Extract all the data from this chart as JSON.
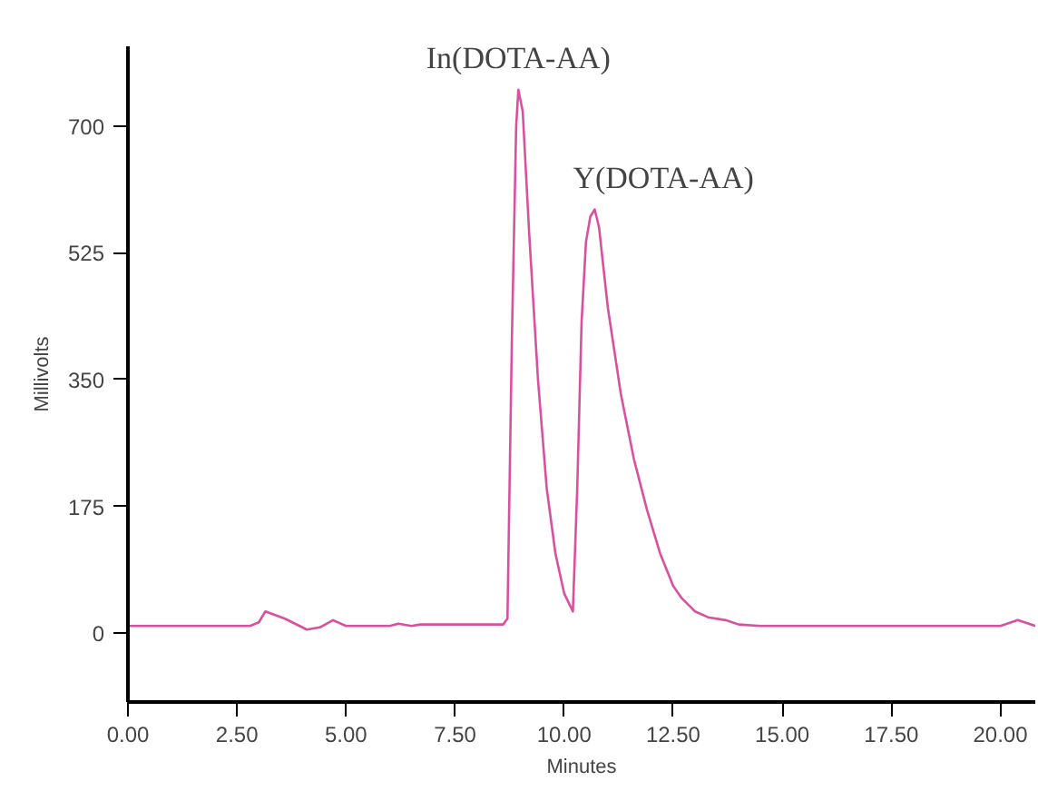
{
  "chart_data": {
    "type": "line",
    "xlabel": "Minutes",
    "ylabel": "Millivolts",
    "x": [
      0,
      2.8,
      3.0,
      3.15,
      3.6,
      4.1,
      4.4,
      4.7,
      5.0,
      6.0,
      6.2,
      6.5,
      6.7,
      8.6,
      8.7,
      8.8,
      8.9,
      8.95,
      9.05,
      9.2,
      9.4,
      9.6,
      9.8,
      10.0,
      10.2,
      10.3,
      10.4,
      10.5,
      10.6,
      10.7,
      10.8,
      11.0,
      11.3,
      11.6,
      11.9,
      12.2,
      12.5,
      12.7,
      13.0,
      13.3,
      13.7,
      14.0,
      14.5,
      15.0,
      16.0,
      17.0,
      18.0,
      19.0,
      20.0,
      20.4,
      20.8
    ],
    "series": [
      {
        "color": "#d9519e",
        "values": [
          10,
          10,
          15,
          30,
          20,
          5,
          8,
          18,
          10,
          10,
          13,
          10,
          12,
          12,
          20,
          400,
          700,
          750,
          720,
          550,
          350,
          200,
          110,
          55,
          30,
          200,
          430,
          540,
          575,
          585,
          560,
          450,
          330,
          240,
          170,
          110,
          65,
          48,
          30,
          22,
          18,
          12,
          10,
          10,
          10,
          10,
          10,
          10,
          10,
          18,
          10
        ]
      }
    ],
    "xlim": [
      0,
      20.8
    ],
    "ylim": [
      -95,
      810
    ],
    "xticks": [
      {
        "value": 0,
        "label": "0.00"
      },
      {
        "value": 2.5,
        "label": "2.50"
      },
      {
        "value": 5,
        "label": "5.00"
      },
      {
        "value": 7.5,
        "label": "7.50"
      },
      {
        "value": 10,
        "label": "10.00"
      },
      {
        "value": 12.5,
        "label": "12.50"
      },
      {
        "value": 15,
        "label": "15.00"
      },
      {
        "value": 17.5,
        "label": "17.50"
      },
      {
        "value": 20,
        "label": "20.00"
      }
    ],
    "yticks": [
      0,
      175,
      350,
      525,
      700
    ],
    "annotations": [
      {
        "text": "In(DOTA-AA)",
        "x": 8.95,
        "y": 750
      },
      {
        "text": "Y(DOTA-AA)",
        "x": 10.7,
        "y": 585
      }
    ],
    "grid": false
  }
}
